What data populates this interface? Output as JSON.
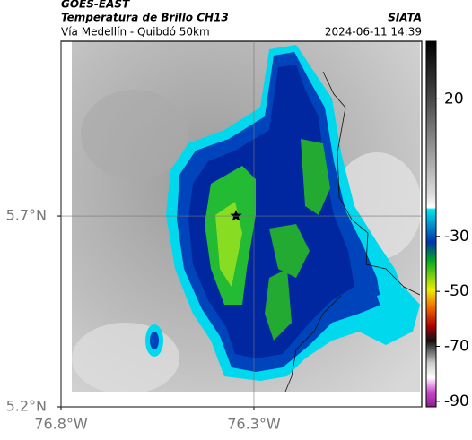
{
  "header": {
    "satellite": "GOES-EAST",
    "product": "Temperatura de Brillo CH13",
    "agency": "SIATA",
    "region": "Vía Medellín - Quibdó 50km",
    "timestamp": "2024-06-11 14:39"
  },
  "map": {
    "xlim": [
      -76.8,
      -75.865
    ],
    "ylim": [
      5.2,
      6.158
    ],
    "xticks": [
      {
        "value": -76.8,
        "label": "76.8°W"
      },
      {
        "value": -76.3,
        "label": "76.3°W"
      }
    ],
    "yticks": [
      {
        "value": 5.2,
        "label": "5.2°N"
      },
      {
        "value": 5.7,
        "label": "5.7°N"
      }
    ]
  },
  "colorbar": {
    "lim": [
      -92,
      41
    ],
    "ticks": [
      20,
      -30,
      -50,
      -70,
      -90
    ]
  }
}
